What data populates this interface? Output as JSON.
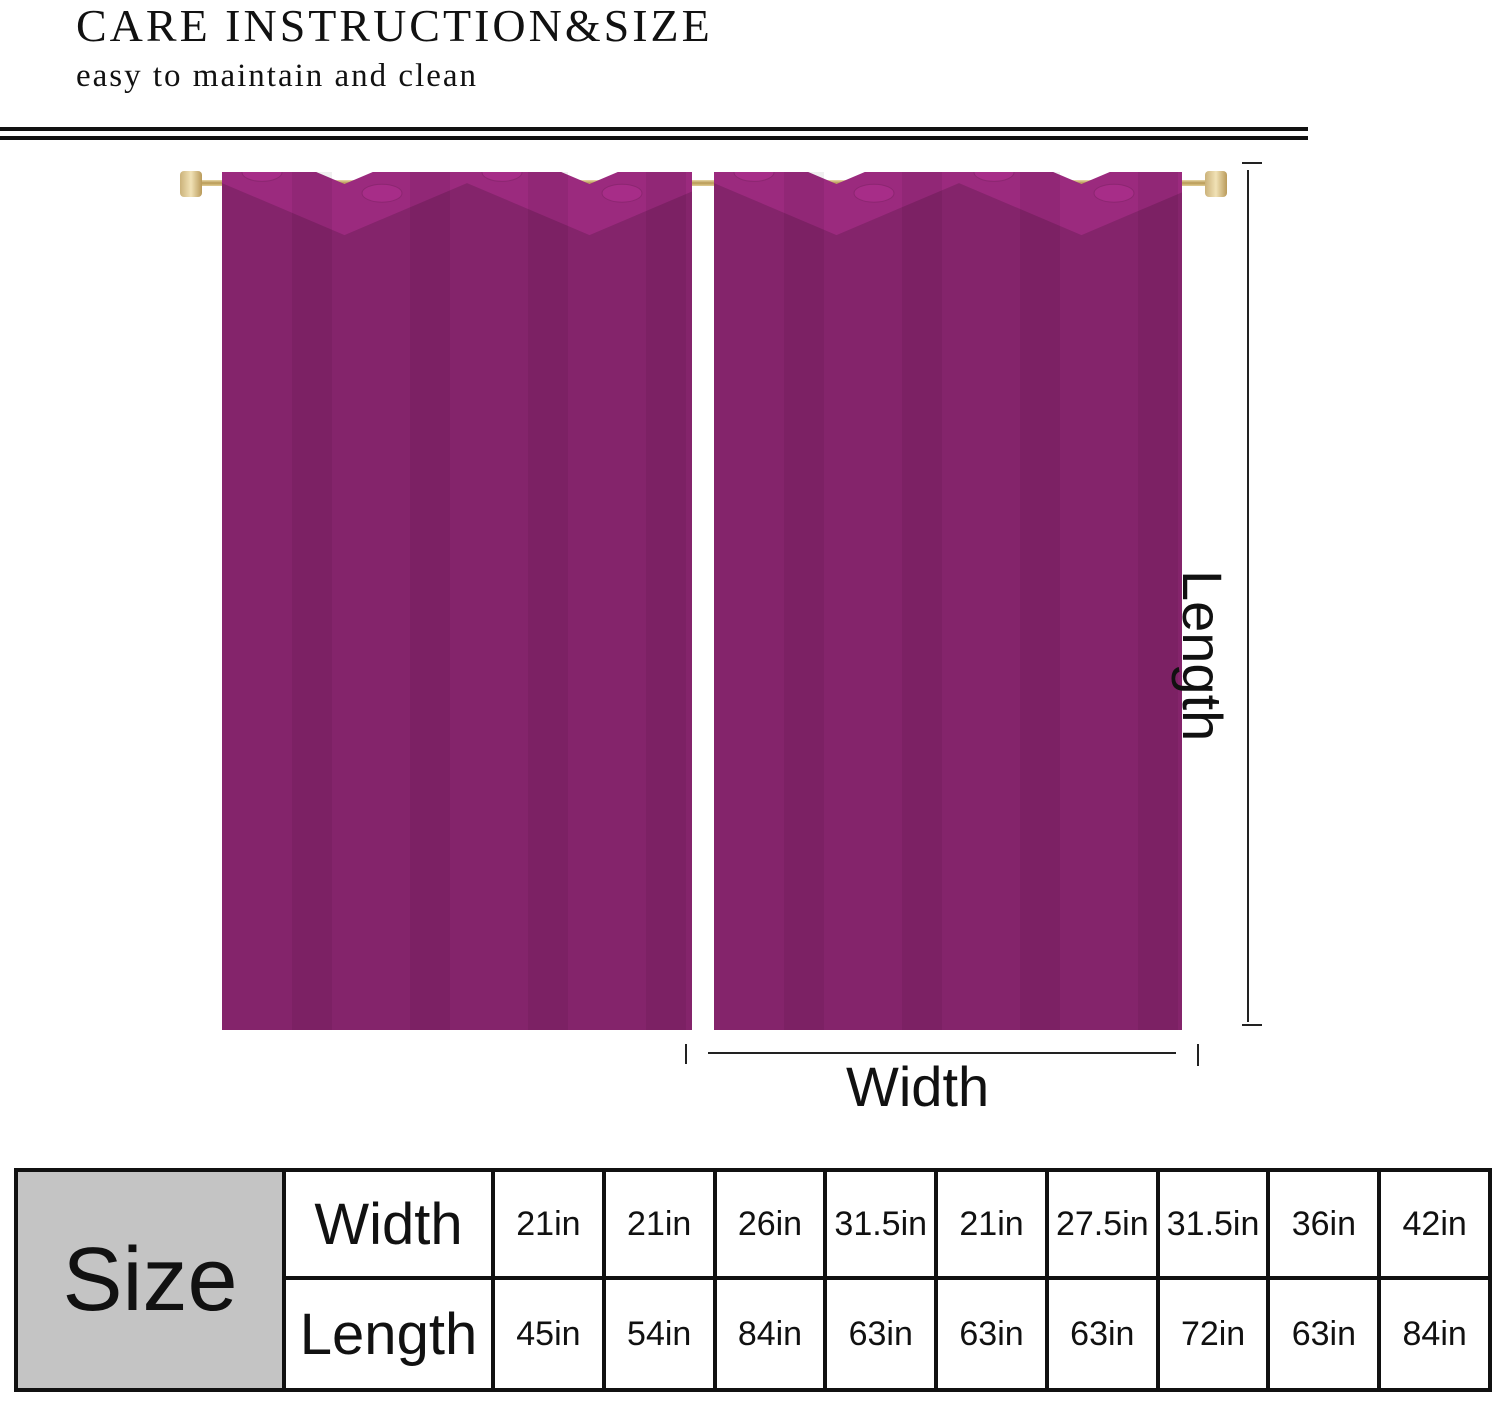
{
  "header": {
    "title": "CARE INSTRUCTION&SIZE",
    "subtitle": "easy to maintain and clean"
  },
  "product_image": {
    "stripe_colors": [
      "#9b2a7e",
      "#e5303c",
      "#f07a1c",
      "#f5d63a",
      "#1fa055",
      "#1e8ad6",
      "#3a3e9e",
      "#6b3aa0",
      "#c63a8a"
    ]
  },
  "diagram": {
    "length_label": "Length",
    "width_label": "Width"
  },
  "size_table": {
    "header": "Size",
    "width_label": "Width",
    "length_label": "Length",
    "widths": [
      "21in",
      "21in",
      "26in",
      "31.5in",
      "21in",
      "27.5in",
      "31.5in",
      "36in",
      "42in"
    ],
    "lengths": [
      "45in",
      "54in",
      "84in",
      "63in",
      "63in",
      "63in",
      "72in",
      "63in",
      "84in"
    ]
  }
}
